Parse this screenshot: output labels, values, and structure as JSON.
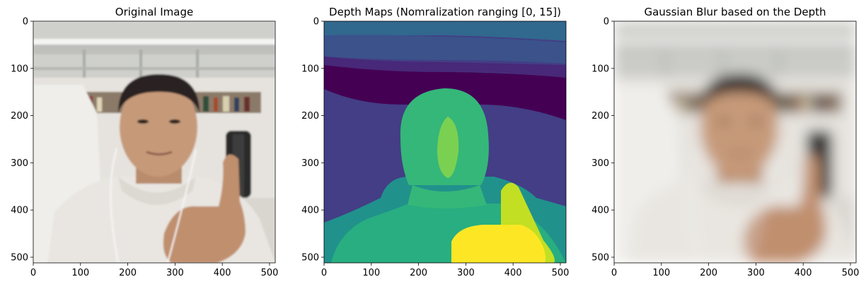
{
  "figure": {
    "panels": [
      {
        "title": "Original Image",
        "image_kind": "photo"
      },
      {
        "title": "Depth Maps (Nomralization ranging [0, 15])",
        "image_kind": "depth-map"
      },
      {
        "title": "Gaussian Blur based on the Depth",
        "image_kind": "blurred-photo"
      }
    ],
    "axes": {
      "xticks": [
        "0",
        "100",
        "200",
        "300",
        "400",
        "500"
      ],
      "yticks": [
        "0",
        "100",
        "200",
        "300",
        "400",
        "500"
      ],
      "xlim": [
        0,
        512
      ],
      "ylim": [
        512,
        0
      ]
    },
    "colors": {
      "viridis_dark": "#440154",
      "viridis_purple": "#433e85",
      "viridis_blue": "#31688e",
      "viridis_teal": "#21918c",
      "viridis_green": "#35b779",
      "viridis_light_green": "#7ad151",
      "viridis_yellow_green": "#c2df23",
      "viridis_yellow": "#fde725",
      "photo_wall": "#e8e4dd",
      "photo_ceiling": "#d6d6d2",
      "photo_hoodie": "#eae7e2",
      "photo_skin": "#c59a7a",
      "photo_hair": "#2c2622"
    }
  }
}
